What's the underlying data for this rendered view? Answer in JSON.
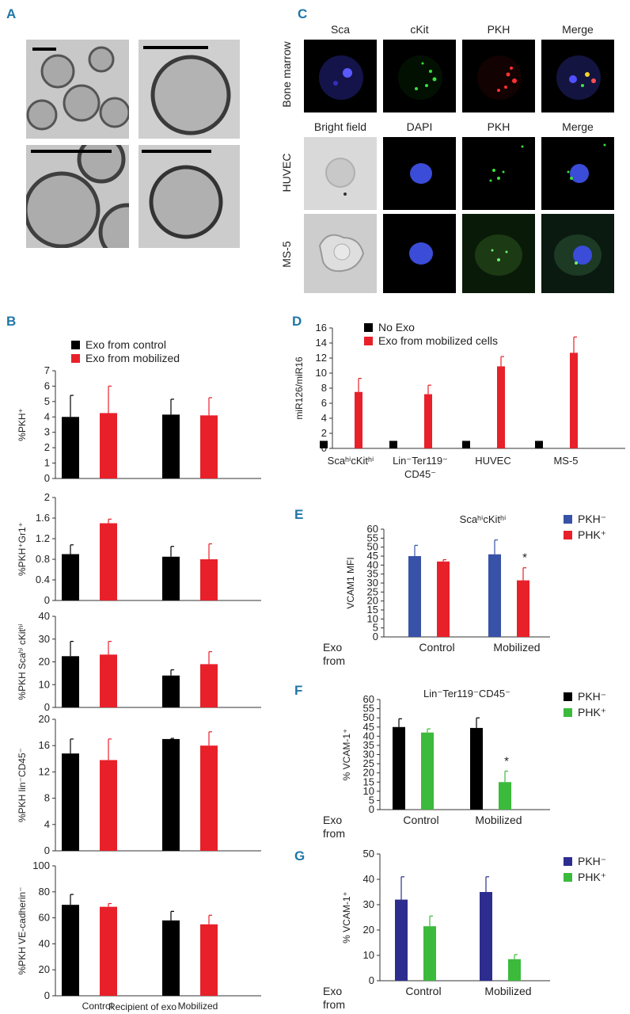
{
  "panels": {
    "A": "A",
    "B": "B",
    "C": "C",
    "D": "D",
    "E": "E",
    "F": "F",
    "G": "G"
  },
  "microscopy_c": {
    "row1_cols": [
      "Sca",
      "cKit",
      "PKH",
      "Merge"
    ],
    "row23_cols": [
      "Bright field",
      "DAPI",
      "PKH",
      "Merge"
    ],
    "row_labels": [
      "Bone marrow",
      "HUVEC",
      "MS-5"
    ]
  },
  "chart_data": [
    {
      "id": "B1",
      "type": "bar",
      "categories": [
        "Control",
        "Mobilized"
      ],
      "series": [
        {
          "name": "Exo from control",
          "color": "#000000",
          "values": [
            4.0,
            4.15
          ],
          "err": [
            1.4,
            1.0
          ]
        },
        {
          "name": "Exo from mobilized",
          "color": "#e8202a",
          "values": [
            4.25,
            4.1
          ],
          "err": [
            1.75,
            1.15
          ]
        }
      ],
      "ylabel": "%PKH⁺",
      "ylim": [
        0,
        7
      ],
      "yticks": [
        0,
        1,
        2,
        3,
        4,
        5,
        6,
        7
      ],
      "legend": [
        "Exo from control",
        "Exo from mobilized"
      ]
    },
    {
      "id": "B2",
      "type": "bar",
      "categories": [
        "Control",
        "Mobilized"
      ],
      "series": [
        {
          "name": "Exo from control",
          "color": "#000000",
          "values": [
            0.9,
            0.85
          ],
          "err": [
            0.18,
            0.2
          ]
        },
        {
          "name": "Exo from mobilized",
          "color": "#e8202a",
          "values": [
            1.5,
            0.8
          ],
          "err": [
            0.08,
            0.3
          ]
        }
      ],
      "ylabel": "%PKH⁺Gr1⁺",
      "ylim": [
        0,
        2
      ],
      "yticks": [
        0,
        0.4,
        0.8,
        1.2,
        1.6,
        2
      ]
    },
    {
      "id": "B3",
      "type": "bar",
      "categories": [
        "Control",
        "Mobilized"
      ],
      "series": [
        {
          "name": "Exo from control",
          "color": "#000000",
          "values": [
            22.5,
            14
          ],
          "err": [
            6.5,
            2.5
          ]
        },
        {
          "name": "Exo from mobilized",
          "color": "#e8202a",
          "values": [
            23.2,
            19
          ],
          "err": [
            5.8,
            5.5
          ]
        }
      ],
      "ylabel": "%PKH Scaʰⁱ cKitʰⁱ",
      "ylim": [
        0,
        40
      ],
      "yticks": [
        0,
        10,
        20,
        30,
        40
      ]
    },
    {
      "id": "B4",
      "type": "bar",
      "categories": [
        "Control",
        "Mobilized"
      ],
      "series": [
        {
          "name": "Exo from control",
          "color": "#000000",
          "values": [
            14.8,
            17
          ],
          "err": [
            2.2,
            0.1
          ]
        },
        {
          "name": "Exo from mobilized",
          "color": "#e8202a",
          "values": [
            13.8,
            16
          ],
          "err": [
            3.2,
            2.1
          ]
        }
      ],
      "ylabel": "%PKH lin⁻CD45⁻",
      "ylim": [
        0,
        20
      ],
      "yticks": [
        0,
        4,
        8,
        12,
        16,
        20
      ]
    },
    {
      "id": "B5",
      "type": "bar",
      "categories": [
        "Control",
        "Mobilized"
      ],
      "series": [
        {
          "name": "Exo from control",
          "color": "#000000",
          "values": [
            70,
            58
          ],
          "err": [
            8,
            7
          ]
        },
        {
          "name": "Exo from mobilized",
          "color": "#e8202a",
          "values": [
            68.5,
            55
          ],
          "err": [
            2.5,
            7
          ]
        }
      ],
      "ylabel": "%PKH VE-cadherin⁻",
      "ylim": [
        0,
        100
      ],
      "yticks": [
        0,
        20,
        40,
        60,
        80,
        100
      ],
      "xlabel": "Recipient of exo"
    },
    {
      "id": "D",
      "type": "bar",
      "categories": [
        "ScaʰⁱcKitʰⁱ",
        "Lin⁻Ter119⁻ CD45⁻",
        "HUVEC",
        "MS-5"
      ],
      "series": [
        {
          "name": "No Exo",
          "color": "#000000",
          "values": [
            1,
            1,
            1,
            1
          ],
          "err": [
            0,
            0,
            0,
            0
          ]
        },
        {
          "name": "Exo from mobilized cells",
          "color": "#e8202a",
          "values": [
            7.5,
            7.2,
            10.9,
            12.7
          ],
          "err": [
            1.8,
            1.2,
            1.3,
            2.1
          ]
        }
      ],
      "ylabel": "miR126/miR16",
      "ylim": [
        0,
        16
      ],
      "yticks": [
        0,
        2,
        4,
        6,
        8,
        10,
        12,
        14,
        16
      ],
      "legend": [
        "No Exo",
        "Exo from mobilized cells"
      ]
    },
    {
      "id": "E",
      "type": "bar",
      "categories": [
        "Control",
        "Mobilized"
      ],
      "series": [
        {
          "name": "PKH⁻",
          "color": "#3752a6",
          "values": [
            45,
            46
          ],
          "err": [
            6,
            8
          ]
        },
        {
          "name": "PHK⁺",
          "color": "#e8202a",
          "values": [
            42,
            31.5
          ],
          "err": [
            1,
            7
          ]
        }
      ],
      "title": "ScaʰⁱcKitʰⁱ",
      "ylabel": "VCAM1 MFI",
      "ylim": [
        0,
        60
      ],
      "yticks": [
        0,
        5,
        10,
        15,
        20,
        25,
        30,
        35,
        40,
        45,
        50,
        55,
        60
      ],
      "xprefix": "Exo from",
      "star": "*",
      "legend": [
        "PKH⁻",
        "PHK⁺"
      ]
    },
    {
      "id": "F",
      "type": "bar",
      "categories": [
        "Control",
        "Mobilized"
      ],
      "series": [
        {
          "name": "PKH⁻",
          "color": "#000000",
          "values": [
            45,
            44.5
          ],
          "err": [
            4.5,
            5.5
          ]
        },
        {
          "name": "PHK⁺",
          "color": "#3cba3c",
          "values": [
            42,
            15
          ],
          "err": [
            2,
            6
          ]
        }
      ],
      "title": "Lin⁻Ter119⁻CD45⁻",
      "ylabel": "% VCAM-1⁺",
      "ylim": [
        0,
        60
      ],
      "yticks": [
        0,
        5,
        10,
        15,
        20,
        25,
        30,
        35,
        40,
        45,
        50,
        55,
        60
      ],
      "xprefix": "Exo from",
      "star": "*",
      "legend": [
        "PKH⁻",
        "PHK⁺"
      ]
    },
    {
      "id": "G",
      "type": "bar",
      "categories": [
        "Control",
        "Mobilized"
      ],
      "series": [
        {
          "name": "PKH⁻",
          "color": "#2d2d8f",
          "values": [
            32,
            35
          ],
          "err": [
            9,
            6
          ]
        },
        {
          "name": "PHK⁺",
          "color": "#3cba3c",
          "values": [
            21.5,
            8.5
          ],
          "err": [
            4,
            1.8
          ]
        }
      ],
      "ylabel": "% VCAM-1⁺",
      "ylim": [
        0,
        50
      ],
      "yticks": [
        0,
        10,
        20,
        30,
        40,
        50
      ],
      "xprefix": "Exo from",
      "legend": [
        "PKH⁻",
        "PHK⁺"
      ]
    }
  ]
}
